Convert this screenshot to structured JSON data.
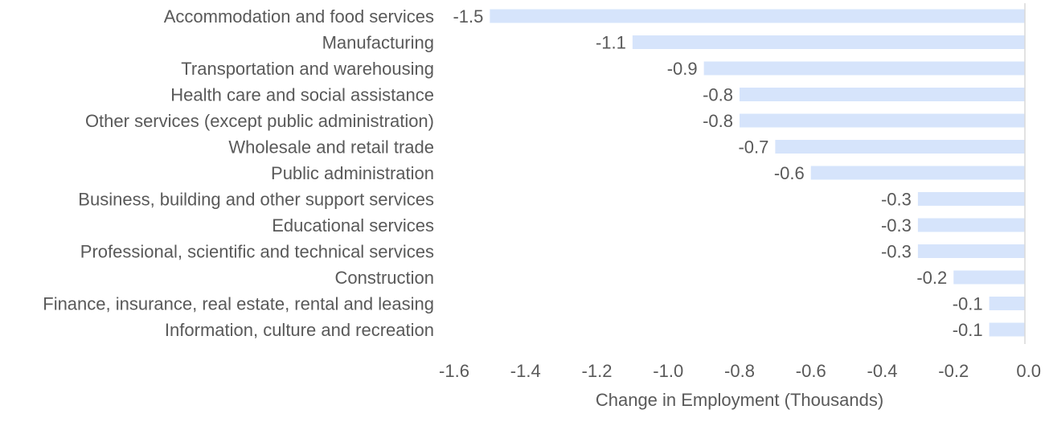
{
  "chart_data": {
    "type": "bar",
    "orientation": "horizontal",
    "categories": [
      "Accommodation and food services",
      "Manufacturing",
      "Transportation and warehousing",
      "Health care and social assistance",
      "Other services (except public administration)",
      "Wholesale and retail trade",
      "Public administration",
      "Business, building and other support services",
      "Educational services",
      "Professional, scientific and technical services",
      "Construction",
      "Finance, insurance, real estate, rental and leasing",
      "Information, culture and recreation"
    ],
    "values": [
      -1.5,
      -1.1,
      -0.9,
      -0.8,
      -0.8,
      -0.7,
      -0.6,
      -0.3,
      -0.3,
      -0.3,
      -0.2,
      -0.1,
      -0.1
    ],
    "value_labels": [
      "-1.5",
      "-1.1",
      "-0.9",
      "-0.8",
      "-0.8",
      "-0.7",
      "-0.6",
      "-0.3",
      "-0.3",
      "-0.3",
      "-0.2",
      "-0.1",
      "-0.1"
    ],
    "x_ticks": [
      -1.6,
      -1.4,
      -1.2,
      -1.0,
      -0.8,
      -0.6,
      -0.4,
      -0.2,
      0.0
    ],
    "x_tick_labels": [
      "-1.6",
      "-1.4",
      "-1.2",
      "-1.0",
      "-0.8",
      "-0.6",
      "-0.4",
      "-0.2",
      "0.0"
    ],
    "xlim": [
      -1.6,
      0.0
    ],
    "xlabel": "Change in Employment (Thousands)",
    "ylabel": "",
    "title": "",
    "grid": false,
    "legend": "none",
    "bar_color": "#d6e4fb",
    "axis_color": "#d9d9d9",
    "text_color": "#595959"
  }
}
